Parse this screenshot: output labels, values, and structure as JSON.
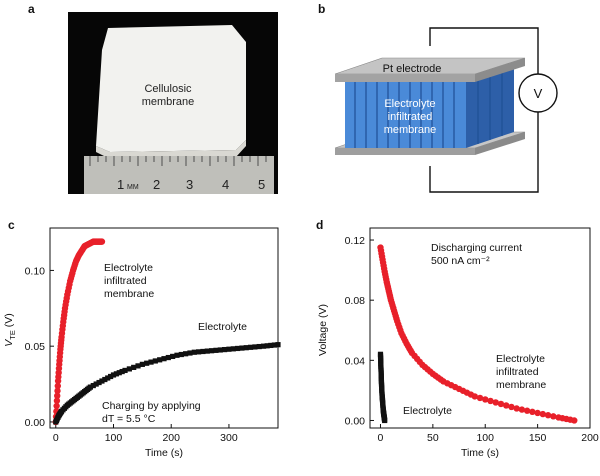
{
  "panels": {
    "a": {
      "letter": "a",
      "membrane_label": [
        "Cellulosic",
        "membrane"
      ],
      "ruler_ticks": [
        "1",
        "MM",
        "2",
        "3",
        "4",
        "5"
      ]
    },
    "b": {
      "letter": "b",
      "electrode_label": "Pt electrode",
      "membrane_label": [
        "Electrolyte",
        "infiltrated",
        "membrane"
      ],
      "voltmeter_label": "V"
    },
    "c": {
      "letter": "c"
    },
    "d": {
      "letter": "d"
    }
  },
  "colors": {
    "red": "#e8202a",
    "black": "#111111",
    "blue": "#3b7fd0",
    "plate": "#b9b9b9"
  },
  "chart_data": [
    {
      "type": "scatter",
      "panel": "c",
      "xlabel": "Time (s)",
      "ylabel": "V_TE (V)",
      "ylabel_main": "V",
      "ylabel_sub": "TE",
      "ylabel_unit": " (V)",
      "xlim": [
        -10,
        385
      ],
      "ylim": [
        -0.004,
        0.128
      ],
      "xticks": [
        0,
        100,
        200,
        300
      ],
      "xtick_labels": [
        "0",
        "100",
        "200",
        "300"
      ],
      "yticks": [
        0,
        0.05,
        0.1
      ],
      "ytick_labels": [
        "0.00",
        "0.05",
        "0.10"
      ],
      "annotations": [
        {
          "lines": [
            "Electrolyte",
            "infiltrated",
            "membrane"
          ]
        },
        {
          "lines": [
            "Electrolyte"
          ]
        },
        {
          "lines": [
            "Charging by applying",
            "dT = 5.5 °C"
          ]
        }
      ],
      "series": [
        {
          "name": "Electrolyte infiltrated membrane",
          "color": "#e8202a",
          "x": [
            0,
            2,
            4,
            6,
            8,
            10,
            13,
            16,
            20,
            25,
            30,
            35,
            40,
            45,
            50,
            55,
            60,
            65,
            70,
            75,
            80
          ],
          "y": [
            0,
            0.014,
            0.027,
            0.038,
            0.048,
            0.056,
            0.066,
            0.075,
            0.084,
            0.093,
            0.1,
            0.106,
            0.11,
            0.113,
            0.116,
            0.117,
            0.118,
            0.119,
            0.119,
            0.119,
            0.119
          ]
        },
        {
          "name": "Electrolyte",
          "color": "#111111",
          "x": [
            0,
            5,
            10,
            20,
            30,
            40,
            50,
            60,
            80,
            100,
            120,
            150,
            180,
            210,
            240,
            270,
            300,
            330,
            360,
            385
          ],
          "y": [
            0,
            0.004,
            0.007,
            0.011,
            0.014,
            0.017,
            0.02,
            0.023,
            0.027,
            0.031,
            0.034,
            0.038,
            0.041,
            0.044,
            0.046,
            0.047,
            0.048,
            0.049,
            0.05,
            0.051
          ]
        }
      ]
    },
    {
      "type": "scatter",
      "panel": "d",
      "xlabel": "Time (s)",
      "ylabel": "Voltage (V)",
      "xlim": [
        -10,
        200
      ],
      "ylim": [
        -0.005,
        0.128
      ],
      "xticks": [
        0,
        50,
        100,
        150,
        200
      ],
      "xtick_labels": [
        "0",
        "50",
        "100",
        "150",
        "200"
      ],
      "yticks": [
        0,
        0.04,
        0.08,
        0.12
      ],
      "ytick_labels": [
        "0.00",
        "0.04",
        "0.08",
        "0.12"
      ],
      "annotations": [
        {
          "lines": [
            "Discharging current",
            "500 nA cm⁻²"
          ]
        },
        {
          "lines": [
            "Electrolyte",
            "infiltrated",
            "membrane"
          ]
        },
        {
          "lines": [
            "Electrolyte"
          ]
        }
      ],
      "series": [
        {
          "name": "Electrolyte infiltrated membrane",
          "color": "#e8202a",
          "x": [
            0,
            2,
            4,
            6,
            8,
            10,
            13,
            16,
            20,
            25,
            30,
            40,
            50,
            60,
            75,
            90,
            110,
            130,
            150,
            170,
            185
          ],
          "y": [
            0.115,
            0.107,
            0.099,
            0.092,
            0.086,
            0.08,
            0.073,
            0.066,
            0.058,
            0.051,
            0.045,
            0.037,
            0.031,
            0.026,
            0.021,
            0.016,
            0.012,
            0.008,
            0.005,
            0.002,
            0.0
          ]
        },
        {
          "name": "Electrolyte",
          "color": "#111111",
          "x": [
            0,
            0.2,
            0.4,
            0.6,
            0.8,
            1,
            1.3,
            1.6,
            2,
            2.4,
            2.8,
            3.2,
            3.6,
            4
          ],
          "y": [
            0.044,
            0.04,
            0.036,
            0.032,
            0.028,
            0.024,
            0.02,
            0.016,
            0.013,
            0.009,
            0.006,
            0.004,
            0.002,
            0.0
          ]
        }
      ]
    }
  ]
}
